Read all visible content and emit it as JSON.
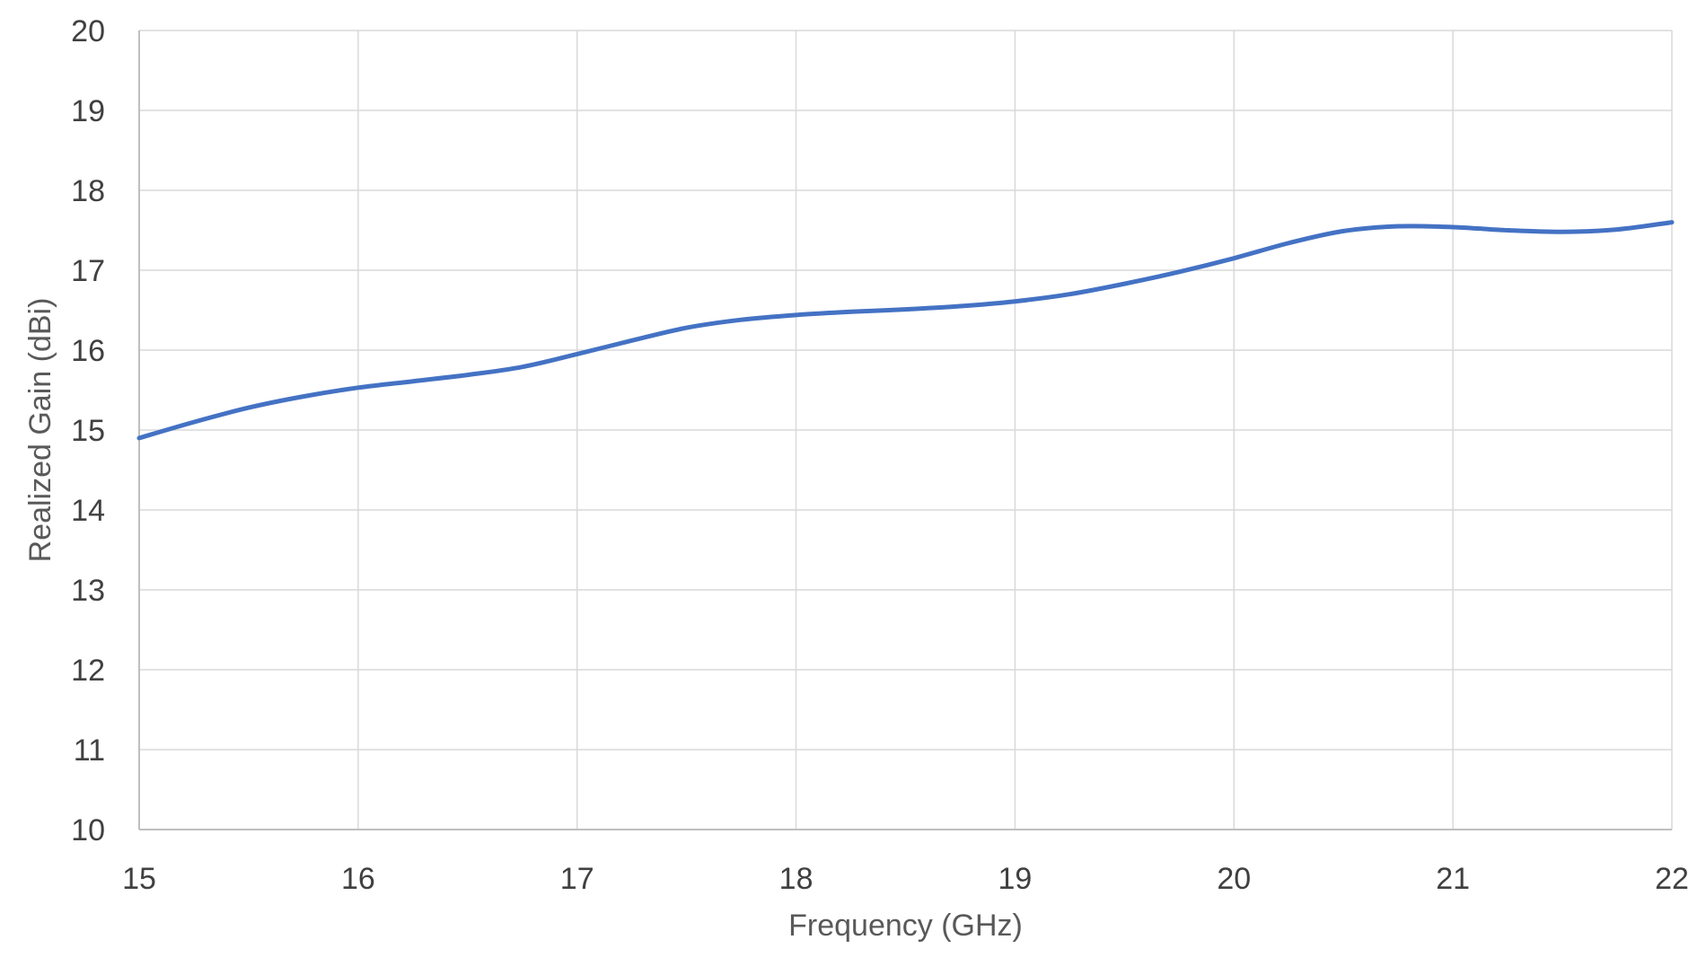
{
  "chart_data": {
    "type": "line",
    "title": "",
    "xlabel": "Frequency (GHz)",
    "ylabel": "Realized Gain (dBi)",
    "xlim": [
      15,
      22
    ],
    "ylim": [
      10,
      20
    ],
    "xticks": [
      15,
      16,
      17,
      18,
      19,
      20,
      21,
      22
    ],
    "yticks": [
      10,
      11,
      12,
      13,
      14,
      15,
      16,
      17,
      18,
      19,
      20
    ],
    "grid": true,
    "legend": "none",
    "series": [
      {
        "color": "#4472C4",
        "x": [
          15,
          15.25,
          15.5,
          15.75,
          16,
          16.25,
          16.5,
          16.75,
          17,
          17.25,
          17.5,
          17.75,
          18,
          18.25,
          18.5,
          18.75,
          19,
          19.25,
          19.5,
          19.75,
          20,
          20.25,
          20.5,
          20.75,
          21,
          21.25,
          21.5,
          21.75,
          22
        ],
        "y": [
          14.9,
          15.1,
          15.28,
          15.42,
          15.53,
          15.61,
          15.69,
          15.79,
          15.95,
          16.12,
          16.28,
          16.38,
          16.44,
          16.48,
          16.51,
          16.55,
          16.61,
          16.7,
          16.83,
          16.98,
          17.15,
          17.34,
          17.49,
          17.55,
          17.54,
          17.5,
          17.48,
          17.51,
          17.6
        ]
      }
    ]
  }
}
